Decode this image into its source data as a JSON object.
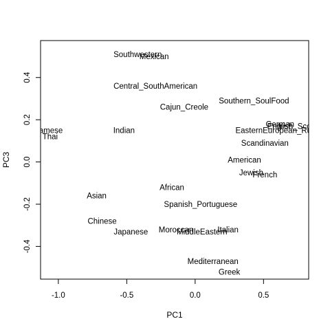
{
  "chart_data": {
    "type": "scatter",
    "xlabel": "PC1",
    "ylabel": "PC3",
    "xlim": [
      -1.13,
      0.83
    ],
    "ylim": [
      -0.555,
      0.575
    ],
    "x_ticks": [
      -1.0,
      -0.5,
      0.0,
      0.5
    ],
    "x_tick_labels": [
      "-1.0",
      "-0.5",
      "0.0",
      "0.5"
    ],
    "y_ticks": [
      -0.4,
      -0.2,
      0.0,
      0.2,
      0.4
    ],
    "y_tick_labels": [
      "-0.4",
      "-0.2",
      "0.0",
      "0.2",
      "0.4"
    ],
    "grid": false,
    "points": [
      {
        "label": "Southwestern",
        "x": -0.42,
        "y": 0.51
      },
      {
        "label": "Mexican",
        "x": -0.3,
        "y": 0.5
      },
      {
        "label": "Central_SouthAmerican",
        "x": -0.29,
        "y": 0.36
      },
      {
        "label": "Cajun_Creole",
        "x": -0.08,
        "y": 0.26
      },
      {
        "label": "Southern_SoulFood",
        "x": 0.43,
        "y": 0.29
      },
      {
        "label": "German",
        "x": 0.62,
        "y": 0.18
      },
      {
        "label": "Irish",
        "x": 0.66,
        "y": 0.17
      },
      {
        "label": "English_Scottish",
        "x": 0.74,
        "y": 0.17
      },
      {
        "label": "EasternEuropean_Russian",
        "x": 0.64,
        "y": 0.15
      },
      {
        "label": "Scandinavian",
        "x": 0.51,
        "y": 0.09
      },
      {
        "label": "Vietnamese",
        "x": -1.12,
        "y": 0.15
      },
      {
        "label": "Thai",
        "x": -1.06,
        "y": 0.12
      },
      {
        "label": "Indian",
        "x": -0.52,
        "y": 0.15
      },
      {
        "label": "American",
        "x": 0.36,
        "y": 0.01
      },
      {
        "label": "Jewish",
        "x": 0.41,
        "y": -0.05
      },
      {
        "label": "French",
        "x": 0.51,
        "y": -0.06
      },
      {
        "label": "Asian",
        "x": -0.72,
        "y": -0.16
      },
      {
        "label": "African",
        "x": -0.17,
        "y": -0.12
      },
      {
        "label": "Spanish_Portuguese",
        "x": 0.04,
        "y": -0.2
      },
      {
        "label": "Chinese",
        "x": -0.68,
        "y": -0.28
      },
      {
        "label": "Japanese",
        "x": -0.47,
        "y": -0.33
      },
      {
        "label": "Moroccan",
        "x": -0.14,
        "y": -0.32
      },
      {
        "label": "MiddleEastern",
        "x": 0.05,
        "y": -0.33
      },
      {
        "label": "Italian",
        "x": 0.24,
        "y": -0.32
      },
      {
        "label": "Mediterranean",
        "x": 0.13,
        "y": -0.47
      },
      {
        "label": "Greek",
        "x": 0.25,
        "y": -0.52
      }
    ]
  }
}
